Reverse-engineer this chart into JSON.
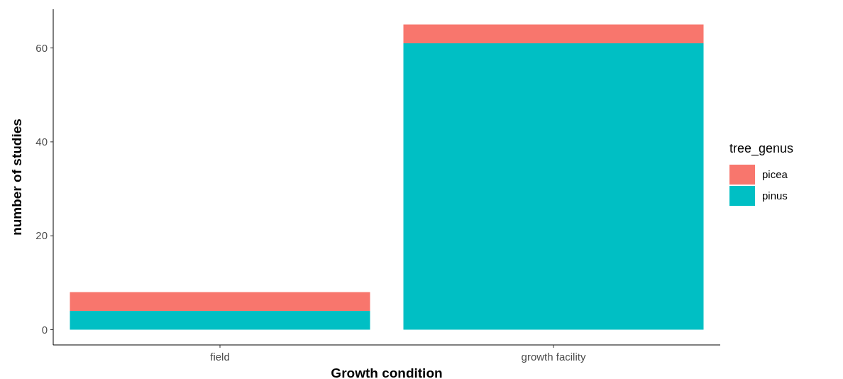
{
  "chart_data": {
    "type": "bar",
    "stacked": true,
    "xlabel": "Growth condition",
    "ylabel": "number of studies",
    "legend_title": "tree_genus",
    "legend": "right",
    "grid": false,
    "categories": [
      "field",
      "growth facility"
    ],
    "series": [
      {
        "name": "pinus",
        "color": "#00bfc4",
        "values": [
          4,
          61
        ]
      },
      {
        "name": "picea",
        "color": "#f8766d",
        "values": [
          4,
          4
        ]
      }
    ],
    "ylim": [
      -3.25,
      68.25
    ],
    "yticks": [
      0,
      20,
      40,
      60
    ]
  }
}
